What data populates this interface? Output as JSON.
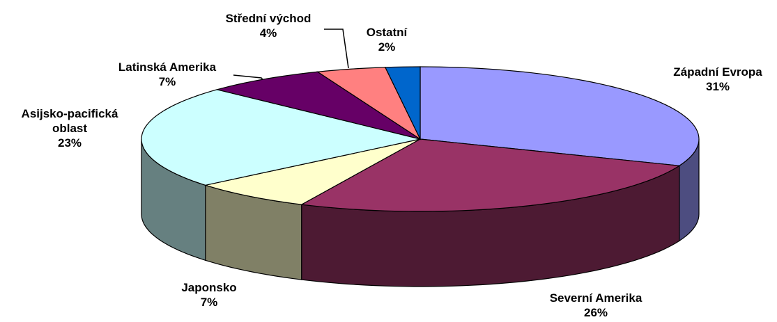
{
  "chart_data": {
    "type": "pie3d",
    "categories": [
      "Západní Evropa",
      "Severní Amerika",
      "Japonsko",
      "Asijsko-pacifická oblast",
      "Latinská Amerika",
      "Střední východ",
      "Ostatní"
    ],
    "values": [
      31,
      26,
      7,
      23,
      7,
      4,
      2
    ],
    "value_labels": [
      "31%",
      "26%",
      "7%",
      "23%",
      "7%",
      "4%",
      "2%"
    ],
    "colors": [
      "#9999ff",
      "#993366",
      "#ffffcc",
      "#ccffff",
      "#660066",
      "#ff8080",
      "#0066cc"
    ]
  }
}
